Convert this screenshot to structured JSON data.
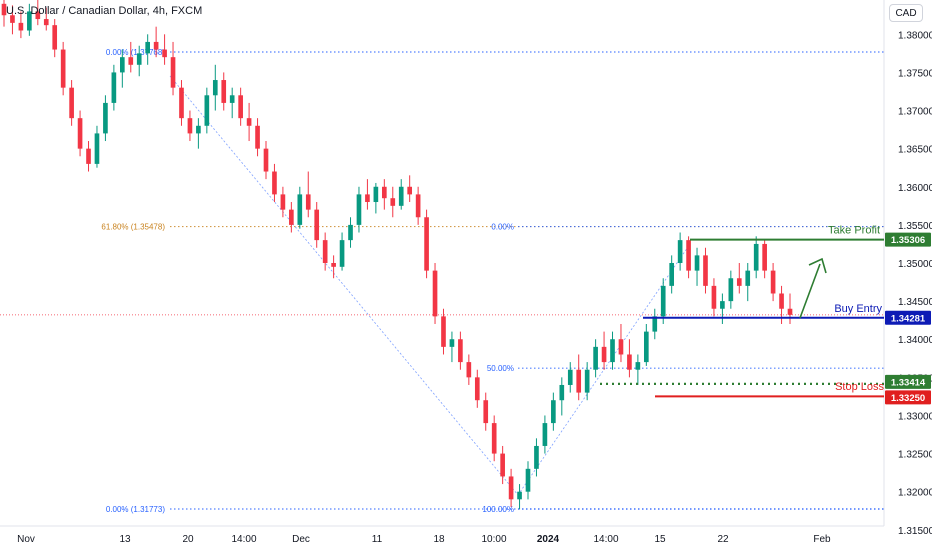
{
  "header": {
    "title": "U.S. Dollar / Canadian Dollar, 4h, FXCM",
    "currency_button": "CAD"
  },
  "chart_data": {
    "type": "candlestick",
    "symbol": "USDCAD",
    "ylim": [
      1.3155,
      1.3845
    ],
    "y_ticks": [
      "1.38000",
      "1.37500",
      "1.37000",
      "1.36500",
      "1.36000",
      "1.35500",
      "1.35000",
      "1.34500",
      "1.34000",
      "1.33500",
      "1.33000",
      "1.32500",
      "1.32000",
      "1.31500"
    ],
    "x_ticks": [
      "Nov",
      "13",
      "20",
      "14:00",
      "Dec",
      "11",
      "18",
      "10:00",
      "2024",
      "14:00",
      "15",
      "22",
      "Feb"
    ],
    "x_tick_bold": "2024",
    "price_badges": [
      {
        "label": "1.35306",
        "value": 1.35306,
        "color": "#2e7d32"
      },
      {
        "label": "1.34281",
        "value": 1.34281,
        "color": "#0d1bb5"
      },
      {
        "label": "1.33414",
        "value": 1.33414,
        "color": "#2e7d32"
      },
      {
        "label": "1.33250",
        "value": 1.3325,
        "color": "#e01f1f"
      }
    ],
    "fib_lines": [
      {
        "label": "0.00% (1.37768)",
        "value": 1.37768,
        "color": "#2962ff"
      },
      {
        "label": "61.80% (1.35478)",
        "value": 1.35478,
        "color": "#c9831f"
      },
      {
        "label": "0.00% (1.31773)",
        "value": 1.31773,
        "color": "#2962ff"
      },
      {
        "label": "0.00%",
        "value": 1.35478,
        "color": "#2962ff"
      },
      {
        "label": "50.00%",
        "value": 1.3362,
        "color": "#2962ff"
      },
      {
        "label": "100.00%",
        "value": 1.31773,
        "color": "#2962ff"
      }
    ],
    "annotations": [
      {
        "label": "Take Profit",
        "value": 1.35306,
        "color": "#2e7d32"
      },
      {
        "label": "Buy Entry",
        "value": 1.34281,
        "color": "#0d1bb5"
      },
      {
        "label": "Stop Loss",
        "value": 1.33414,
        "color": "#e01f1f"
      }
    ],
    "current_price": 1.3432,
    "candles_ohlc": [
      [
        1.384,
        1.3845,
        1.381,
        1.3825
      ],
      [
        1.3825,
        1.3838,
        1.38,
        1.3815
      ],
      [
        1.3815,
        1.383,
        1.3795,
        1.3805
      ],
      [
        1.3805,
        1.384,
        1.3798,
        1.383
      ],
      [
        1.383,
        1.3845,
        1.3812,
        1.382
      ],
      [
        1.382,
        1.3835,
        1.3805,
        1.3812
      ],
      [
        1.3812,
        1.382,
        1.377,
        1.378
      ],
      [
        1.378,
        1.379,
        1.372,
        1.373
      ],
      [
        1.373,
        1.374,
        1.368,
        1.369
      ],
      [
        1.369,
        1.37,
        1.364,
        1.365
      ],
      [
        1.365,
        1.366,
        1.362,
        1.363
      ],
      [
        1.363,
        1.368,
        1.3625,
        1.367
      ],
      [
        1.367,
        1.372,
        1.366,
        1.371
      ],
      [
        1.371,
        1.376,
        1.37,
        1.375
      ],
      [
        1.375,
        1.378,
        1.373,
        1.377
      ],
      [
        1.377,
        1.379,
        1.375,
        1.376
      ],
      [
        1.376,
        1.3785,
        1.3745,
        1.3775
      ],
      [
        1.3775,
        1.38,
        1.376,
        1.379
      ],
      [
        1.379,
        1.381,
        1.377,
        1.378
      ],
      [
        1.378,
        1.38,
        1.376,
        1.377
      ],
      [
        1.377,
        1.379,
        1.372,
        1.373
      ],
      [
        1.373,
        1.374,
        1.368,
        1.369
      ],
      [
        1.369,
        1.37,
        1.366,
        1.367
      ],
      [
        1.367,
        1.369,
        1.365,
        1.368
      ],
      [
        1.368,
        1.373,
        1.367,
        1.372
      ],
      [
        1.372,
        1.376,
        1.37,
        1.374
      ],
      [
        1.374,
        1.375,
        1.37,
        1.371
      ],
      [
        1.371,
        1.373,
        1.369,
        1.372
      ],
      [
        1.372,
        1.373,
        1.368,
        1.369
      ],
      [
        1.369,
        1.371,
        1.366,
        1.368
      ],
      [
        1.368,
        1.369,
        1.364,
        1.365
      ],
      [
        1.365,
        1.366,
        1.361,
        1.362
      ],
      [
        1.362,
        1.363,
        1.358,
        1.359
      ],
      [
        1.359,
        1.36,
        1.356,
        1.357
      ],
      [
        1.357,
        1.358,
        1.354,
        1.355
      ],
      [
        1.355,
        1.36,
        1.3545,
        1.359
      ],
      [
        1.359,
        1.362,
        1.356,
        1.357
      ],
      [
        1.357,
        1.358,
        1.352,
        1.353
      ],
      [
        1.353,
        1.354,
        1.349,
        1.35
      ],
      [
        1.35,
        1.351,
        1.348,
        1.3495
      ],
      [
        1.3495,
        1.354,
        1.349,
        1.353
      ],
      [
        1.353,
        1.356,
        1.352,
        1.355
      ],
      [
        1.355,
        1.36,
        1.354,
        1.359
      ],
      [
        1.359,
        1.361,
        1.357,
        1.358
      ],
      [
        1.358,
        1.3605,
        1.3565,
        1.36
      ],
      [
        1.36,
        1.361,
        1.357,
        1.3585
      ],
      [
        1.3585,
        1.36,
        1.356,
        1.3575
      ],
      [
        1.3575,
        1.361,
        1.357,
        1.36
      ],
      [
        1.36,
        1.3615,
        1.358,
        1.359
      ],
      [
        1.359,
        1.36,
        1.355,
        1.356
      ],
      [
        1.356,
        1.357,
        1.348,
        1.349
      ],
      [
        1.349,
        1.35,
        1.342,
        1.343
      ],
      [
        1.343,
        1.344,
        1.338,
        1.339
      ],
      [
        1.339,
        1.341,
        1.337,
        1.34
      ],
      [
        1.34,
        1.341,
        1.336,
        1.337
      ],
      [
        1.337,
        1.338,
        1.334,
        1.335
      ],
      [
        1.335,
        1.336,
        1.331,
        1.332
      ],
      [
        1.332,
        1.333,
        1.328,
        1.329
      ],
      [
        1.329,
        1.33,
        1.324,
        1.325
      ],
      [
        1.325,
        1.326,
        1.321,
        1.322
      ],
      [
        1.322,
        1.323,
        1.318,
        1.319
      ],
      [
        1.319,
        1.321,
        1.3177,
        1.32
      ],
      [
        1.32,
        1.324,
        1.319,
        1.323
      ],
      [
        1.323,
        1.327,
        1.322,
        1.326
      ],
      [
        1.326,
        1.33,
        1.325,
        1.329
      ],
      [
        1.329,
        1.333,
        1.328,
        1.332
      ],
      [
        1.332,
        1.335,
        1.33,
        1.334
      ],
      [
        1.334,
        1.337,
        1.333,
        1.336
      ],
      [
        1.336,
        1.338,
        1.332,
        1.333
      ],
      [
        1.333,
        1.337,
        1.332,
        1.336
      ],
      [
        1.336,
        1.34,
        1.335,
        1.339
      ],
      [
        1.339,
        1.341,
        1.336,
        1.337
      ],
      [
        1.337,
        1.341,
        1.336,
        1.34
      ],
      [
        1.34,
        1.342,
        1.337,
        1.338
      ],
      [
        1.338,
        1.34,
        1.335,
        1.336
      ],
      [
        1.336,
        1.338,
        1.334,
        1.337
      ],
      [
        1.337,
        1.342,
        1.3365,
        1.341
      ],
      [
        1.341,
        1.344,
        1.34,
        1.343
      ],
      [
        1.343,
        1.348,
        1.342,
        1.347
      ],
      [
        1.347,
        1.351,
        1.346,
        1.35
      ],
      [
        1.35,
        1.354,
        1.349,
        1.353
      ],
      [
        1.353,
        1.3535,
        1.348,
        1.349
      ],
      [
        1.349,
        1.352,
        1.347,
        1.351
      ],
      [
        1.351,
        1.352,
        1.346,
        1.347
      ],
      [
        1.347,
        1.348,
        1.343,
        1.344
      ],
      [
        1.344,
        1.346,
        1.342,
        1.345
      ],
      [
        1.345,
        1.349,
        1.344,
        1.348
      ],
      [
        1.348,
        1.35,
        1.346,
        1.347
      ],
      [
        1.347,
        1.35,
        1.345,
        1.349
      ],
      [
        1.349,
        1.3535,
        1.348,
        1.3525
      ],
      [
        1.3525,
        1.353,
        1.348,
        1.349
      ],
      [
        1.349,
        1.35,
        1.345,
        1.346
      ],
      [
        1.346,
        1.347,
        1.342,
        1.344
      ],
      [
        1.344,
        1.346,
        1.342,
        1.3432
      ]
    ]
  }
}
